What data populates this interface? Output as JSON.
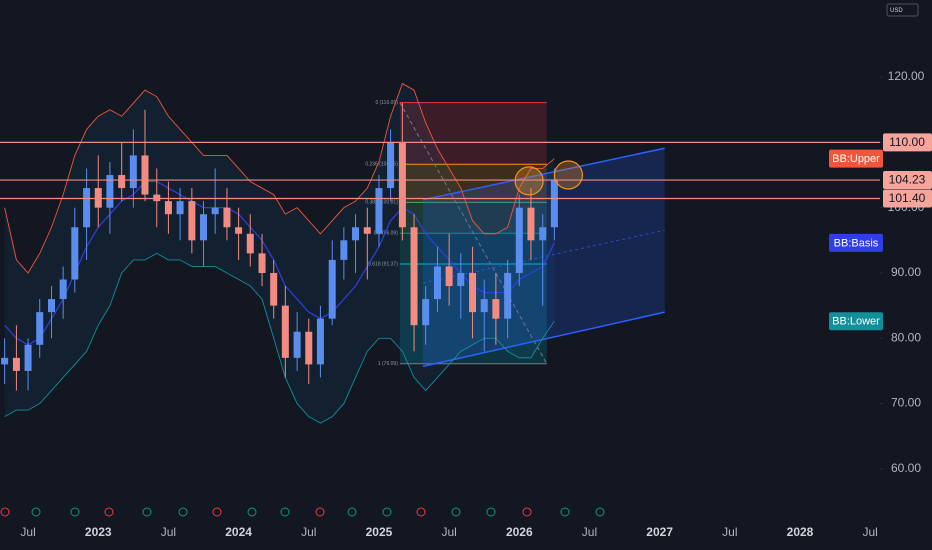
{
  "chart_data": {
    "type": "candlestick",
    "currency": "USD",
    "x": [
      2022.333,
      2022.417,
      2022.5,
      2022.583,
      2022.667,
      2022.75,
      2022.833,
      2022.917,
      2023,
      2023.083,
      2023.167,
      2023.25,
      2023.333,
      2023.417,
      2023.5,
      2023.583,
      2023.667,
      2023.75,
      2023.833,
      2023.917,
      2024,
      2024.083,
      2024.167,
      2024.25,
      2024.333,
      2024.417,
      2024.5,
      2024.583,
      2024.667,
      2024.75,
      2024.833,
      2024.917,
      2025,
      2025.083,
      2025.167,
      2025.25,
      2025.333,
      2025.417,
      2025.5,
      2025.583,
      2025.667,
      2025.75,
      2025.833,
      2025.917,
      2026,
      2026.083,
      2026.167,
      2026.25
    ],
    "open": [
      76,
      77,
      75,
      79,
      84,
      86,
      89,
      97,
      103,
      100,
      105,
      103,
      108,
      102,
      101,
      99,
      101,
      95,
      99,
      100,
      97,
      96,
      93,
      90,
      85,
      77,
      81,
      76,
      83,
      92,
      95,
      97,
      96,
      103,
      110,
      97,
      82,
      86,
      91,
      88,
      90,
      84,
      86,
      83,
      90,
      100,
      95,
      97
    ],
    "high": [
      80,
      82,
      80,
      86,
      88,
      91,
      100,
      106,
      108,
      107,
      110,
      112,
      115,
      106,
      104,
      103,
      103,
      101,
      106,
      103,
      100,
      99,
      96,
      92,
      88,
      84,
      83,
      85,
      95,
      97,
      99,
      100,
      105,
      112,
      116.09,
      99,
      88,
      94,
      96,
      93,
      94,
      89,
      90,
      92,
      102,
      103,
      99,
      106
    ],
    "low": [
      73,
      72,
      72,
      77,
      80,
      83,
      87,
      92,
      97,
      96,
      101,
      100,
      101,
      97,
      96,
      95,
      93,
      91,
      96,
      95,
      92,
      91,
      88,
      83,
      74,
      75,
      73,
      74,
      82,
      89,
      90,
      89,
      94,
      101,
      95,
      78,
      79,
      84,
      85,
      83,
      80,
      78,
      79,
      80,
      88,
      92,
      85,
      95
    ],
    "close": [
      77,
      75,
      79,
      84,
      86,
      89,
      97,
      103,
      100,
      105,
      103,
      108,
      102,
      101,
      99,
      101,
      95,
      99,
      100,
      97,
      96,
      93,
      90,
      85,
      77,
      81,
      76,
      83,
      92,
      95,
      97,
      96,
      103,
      110,
      97,
      82,
      86,
      91,
      88,
      90,
      84,
      86,
      83,
      90,
      100,
      95,
      97,
      104.23
    ],
    "up_color": "#5b8def",
    "down_color": "#f28b82",
    "series": [
      {
        "name": "BB:Upper",
        "color": "#f0573a",
        "values": [
          100,
          92,
          90,
          93,
          97,
          102,
          108,
          112,
          114,
          115,
          114,
          116,
          118,
          117,
          114,
          112,
          110,
          108,
          108,
          108,
          106,
          104,
          103,
          102,
          99,
          100,
          98,
          96,
          98,
          100,
          101,
          103,
          107,
          114,
          119,
          118,
          113,
          109,
          106,
          103,
          98,
          96,
          96,
          97,
          103,
          106,
          106,
          107.5
        ]
      },
      {
        "name": "BB:Basis",
        "color": "#2f3fe4",
        "values": [
          82,
          80,
          79,
          80,
          83,
          86,
          90,
          94,
          97,
          99,
          101,
          102,
          104,
          104,
          103,
          102,
          101,
          100,
          100,
          100,
          99,
          97,
          95,
          92,
          88,
          86,
          84,
          83,
          84,
          86,
          88,
          91,
          94,
          98,
          100,
          99,
          96,
          94,
          92,
          90,
          88,
          87,
          87,
          87,
          89,
          90,
          91,
          94.6
        ]
      },
      {
        "name": "BB:Lower",
        "color": "#138f9a",
        "values": [
          68,
          69,
          69,
          70,
          72,
          74,
          76,
          78,
          82,
          85,
          90,
          92,
          92,
          93,
          92,
          92,
          91,
          91,
          91,
          90,
          89,
          88,
          86,
          80,
          74,
          70,
          68,
          67,
          68,
          70,
          74,
          78,
          80,
          80,
          78,
          74,
          72,
          74,
          76,
          78,
          79,
          80,
          80,
          78,
          77,
          77,
          80,
          82.6
        ]
      }
    ],
    "price_lines": [
      {
        "value": 110,
        "label": "110.00"
      },
      {
        "value": 104.23,
        "label": "104.23"
      },
      {
        "value": 101.4,
        "label": "101.40"
      }
    ],
    "fib": {
      "start": 2025.149,
      "end": 2026.196,
      "levels": [
        {
          "value": 116.09,
          "label": "0 (116.09)",
          "color": "#f23645"
        },
        {
          "value": 106.65,
          "label": "0.236 (106.65)",
          "color": "#ff9800"
        },
        {
          "value": 100.81,
          "label": "0.382 (100.81)",
          "color": "#4caf50"
        },
        {
          "value": 96.09,
          "label": "0.5 (96.09)",
          "color": "#089981"
        },
        {
          "value": 91.37,
          "label": "0.618 (91.37)",
          "color": "#00bcd4"
        },
        {
          "value": 76.09,
          "label": "1 (76.09)",
          "color": "#787b86"
        }
      ]
    },
    "channel": {
      "x": [
        2025.313,
        2027.036
      ],
      "upper": [
        101.2,
        109.1
      ],
      "lower": [
        75.7,
        84.0
      ],
      "color": "#2962ff"
    },
    "highlights": {
      "x": [
        2026.07,
        2026.35
      ],
      "y": [
        104.1,
        105.0
      ],
      "color": "#f7931a"
    },
    "xlim": [
      2022.3,
      2028.57
    ],
    "ylim": [
      56,
      131.8
    ],
    "xticks": [
      {
        "value": 2022.5,
        "label": "Jul"
      },
      2023,
      {
        "value": 2023.5,
        "label": "Jul"
      },
      2024,
      {
        "value": 2024.5,
        "label": "Jul"
      },
      2025,
      {
        "value": 2025.5,
        "label": "Jul"
      },
      2026,
      {
        "value": 2026.5,
        "label": "Jul"
      },
      2027,
      {
        "value": 2027.5,
        "label": "Jul"
      },
      2028,
      {
        "value": 2028.5,
        "label": "Jul"
      }
    ],
    "yticks": [
      {
        "value": 120,
        "label": "120.00"
      },
      {
        "value": 110,
        "label": "110.00"
      },
      {
        "value": 100,
        "label": "100.00"
      },
      {
        "value": 90,
        "label": "90.00"
      },
      {
        "value": 80,
        "label": "80.00"
      },
      {
        "value": 70,
        "label": "70.00"
      },
      {
        "value": 60,
        "label": "60.00"
      }
    ]
  }
}
